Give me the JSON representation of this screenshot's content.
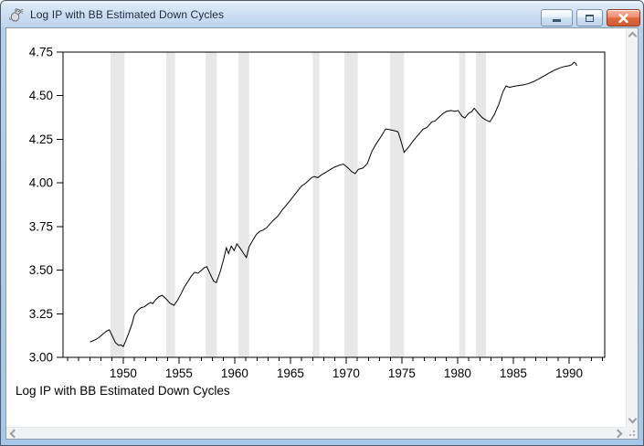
{
  "window": {
    "title": "Log IP with BB Estimated Down Cycles",
    "icon": "rat-icon",
    "controls": {
      "minimize": "Minimize",
      "maximize": "Maximize",
      "close": "Close"
    }
  },
  "colors": {
    "band": "#e8e8e8",
    "line": "#000000",
    "plot_border": "#000000",
    "frame_blue": "#b4d0ec",
    "titlebar_text": "#1c2a3a",
    "close_button_red": "#d9603a",
    "scrollbar_track": "#f1f2f3"
  },
  "chart_data": {
    "type": "line",
    "caption": "Log IP with BB Estimated Down Cycles",
    "x_axis": {
      "min": 1944.6,
      "max": 1993.2,
      "major_ticks": [
        1950,
        1955,
        1960,
        1965,
        1970,
        1975,
        1980,
        1985,
        1990
      ],
      "minor_start": 1945,
      "minor_end": 1993,
      "minor_step": 1
    },
    "y_axis": {
      "min": 3.0,
      "max": 4.75,
      "tick_step": 0.25,
      "tick_decimals": 2
    },
    "grid": false,
    "legend": false,
    "band_color": "#e8e8e8",
    "line_color": "#000000",
    "down_cycle_bands": [
      [
        1948.85,
        1950.1
      ],
      [
        1953.85,
        1954.65
      ],
      [
        1957.4,
        1958.4
      ],
      [
        1960.35,
        1961.3
      ],
      [
        1967.0,
        1967.6
      ],
      [
        1969.85,
        1971.05
      ],
      [
        1973.95,
        1975.2
      ],
      [
        1980.15,
        1980.7
      ],
      [
        1981.65,
        1982.55
      ]
    ],
    "series": {
      "name": "Log IP",
      "points": [
        [
          1947.0,
          3.088
        ],
        [
          1947.3,
          3.095
        ],
        [
          1947.6,
          3.105
        ],
        [
          1947.9,
          3.118
        ],
        [
          1948.2,
          3.135
        ],
        [
          1948.5,
          3.15
        ],
        [
          1948.75,
          3.158
        ],
        [
          1949.0,
          3.125
        ],
        [
          1949.3,
          3.085
        ],
        [
          1949.6,
          3.068
        ],
        [
          1949.8,
          3.072
        ],
        [
          1950.0,
          3.062
        ],
        [
          1950.2,
          3.09
        ],
        [
          1950.5,
          3.14
        ],
        [
          1950.8,
          3.195
        ],
        [
          1951.0,
          3.243
        ],
        [
          1951.3,
          3.27
        ],
        [
          1951.6,
          3.285
        ],
        [
          1951.9,
          3.29
        ],
        [
          1952.2,
          3.305
        ],
        [
          1952.45,
          3.315
        ],
        [
          1952.65,
          3.308
        ],
        [
          1952.9,
          3.33
        ],
        [
          1953.2,
          3.348
        ],
        [
          1953.5,
          3.356
        ],
        [
          1953.85,
          3.335
        ],
        [
          1954.2,
          3.31
        ],
        [
          1954.55,
          3.298
        ],
        [
          1954.9,
          3.33
        ],
        [
          1955.2,
          3.365
        ],
        [
          1955.5,
          3.405
        ],
        [
          1955.8,
          3.435
        ],
        [
          1956.1,
          3.465
        ],
        [
          1956.4,
          3.488
        ],
        [
          1956.7,
          3.482
        ],
        [
          1957.0,
          3.498
        ],
        [
          1957.3,
          3.515
        ],
        [
          1957.5,
          3.52
        ],
        [
          1957.8,
          3.478
        ],
        [
          1958.1,
          3.438
        ],
        [
          1958.35,
          3.428
        ],
        [
          1958.7,
          3.49
        ],
        [
          1959.0,
          3.56
        ],
        [
          1959.25,
          3.628
        ],
        [
          1959.45,
          3.595
        ],
        [
          1959.7,
          3.638
        ],
        [
          1959.95,
          3.612
        ],
        [
          1960.2,
          3.65
        ],
        [
          1960.5,
          3.625
        ],
        [
          1960.8,
          3.595
        ],
        [
          1961.05,
          3.572
        ],
        [
          1961.3,
          3.635
        ],
        [
          1961.6,
          3.668
        ],
        [
          1961.95,
          3.705
        ],
        [
          1962.25,
          3.722
        ],
        [
          1962.55,
          3.73
        ],
        [
          1962.85,
          3.742
        ],
        [
          1963.1,
          3.76
        ],
        [
          1963.45,
          3.785
        ],
        [
          1963.85,
          3.808
        ],
        [
          1964.3,
          3.848
        ],
        [
          1964.8,
          3.885
        ],
        [
          1965.2,
          3.918
        ],
        [
          1965.6,
          3.95
        ],
        [
          1966.0,
          3.982
        ],
        [
          1966.4,
          4.0
        ],
        [
          1966.9,
          4.03
        ],
        [
          1967.15,
          4.037
        ],
        [
          1967.45,
          4.03
        ],
        [
          1967.8,
          4.047
        ],
        [
          1968.2,
          4.062
        ],
        [
          1968.6,
          4.078
        ],
        [
          1969.0,
          4.092
        ],
        [
          1969.4,
          4.102
        ],
        [
          1969.75,
          4.108
        ],
        [
          1970.1,
          4.09
        ],
        [
          1970.5,
          4.065
        ],
        [
          1970.8,
          4.053
        ],
        [
          1971.1,
          4.078
        ],
        [
          1971.5,
          4.085
        ],
        [
          1971.9,
          4.11
        ],
        [
          1972.3,
          4.18
        ],
        [
          1972.7,
          4.225
        ],
        [
          1973.1,
          4.262
        ],
        [
          1973.55,
          4.31
        ],
        [
          1973.9,
          4.305
        ],
        [
          1974.3,
          4.3
        ],
        [
          1974.65,
          4.293
        ],
        [
          1974.9,
          4.245
        ],
        [
          1975.2,
          4.175
        ],
        [
          1975.6,
          4.205
        ],
        [
          1976.0,
          4.24
        ],
        [
          1976.4,
          4.27
        ],
        [
          1976.9,
          4.308
        ],
        [
          1977.25,
          4.318
        ],
        [
          1977.7,
          4.35
        ],
        [
          1978.0,
          4.356
        ],
        [
          1978.35,
          4.378
        ],
        [
          1978.7,
          4.398
        ],
        [
          1979.0,
          4.41
        ],
        [
          1979.4,
          4.415
        ],
        [
          1979.75,
          4.41
        ],
        [
          1980.05,
          4.415
        ],
        [
          1980.4,
          4.382
        ],
        [
          1980.65,
          4.372
        ],
        [
          1981.0,
          4.4
        ],
        [
          1981.25,
          4.408
        ],
        [
          1981.5,
          4.428
        ],
        [
          1981.85,
          4.4
        ],
        [
          1982.2,
          4.375
        ],
        [
          1982.55,
          4.36
        ],
        [
          1982.9,
          4.35
        ],
        [
          1983.3,
          4.392
        ],
        [
          1983.7,
          4.452
        ],
        [
          1984.05,
          4.52
        ],
        [
          1984.35,
          4.556
        ],
        [
          1984.65,
          4.548
        ],
        [
          1985.0,
          4.553
        ],
        [
          1985.45,
          4.558
        ],
        [
          1985.9,
          4.562
        ],
        [
          1986.3,
          4.568
        ],
        [
          1986.8,
          4.58
        ],
        [
          1987.3,
          4.597
        ],
        [
          1987.8,
          4.615
        ],
        [
          1988.2,
          4.63
        ],
        [
          1988.7,
          4.647
        ],
        [
          1989.2,
          4.66
        ],
        [
          1989.6,
          4.668
        ],
        [
          1990.0,
          4.672
        ],
        [
          1990.25,
          4.678
        ],
        [
          1990.45,
          4.692
        ],
        [
          1990.6,
          4.685
        ],
        [
          1990.7,
          4.672
        ]
      ]
    }
  }
}
